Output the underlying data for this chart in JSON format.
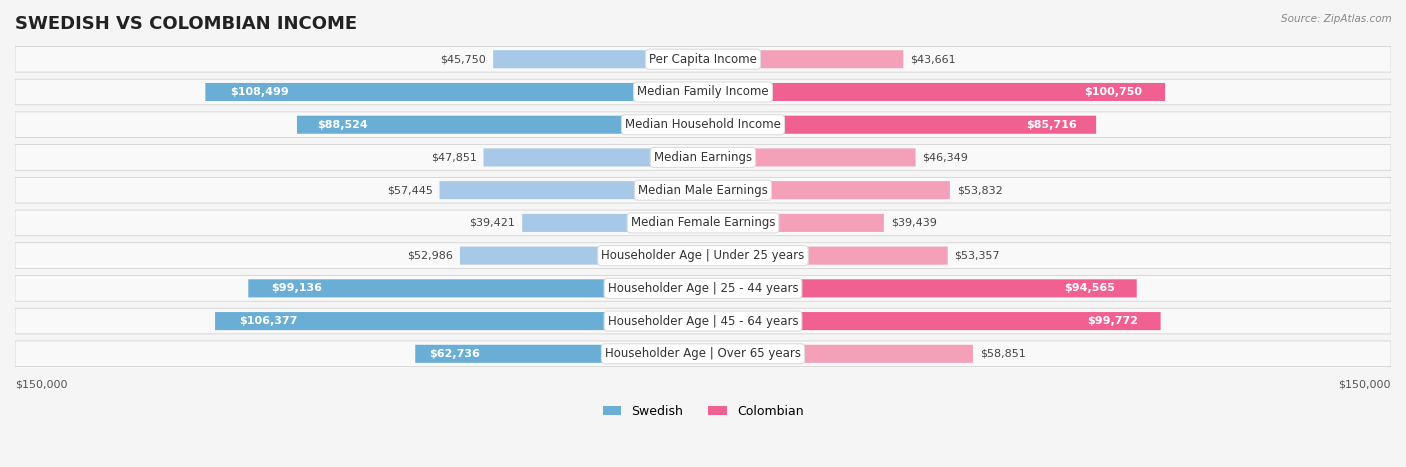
{
  "title": "SWEDISH VS COLOMBIAN INCOME",
  "source": "Source: ZipAtlas.com",
  "categories": [
    "Per Capita Income",
    "Median Family Income",
    "Median Household Income",
    "Median Earnings",
    "Median Male Earnings",
    "Median Female Earnings",
    "Householder Age | Under 25 years",
    "Householder Age | 25 - 44 years",
    "Householder Age | 45 - 64 years",
    "Householder Age | Over 65 years"
  ],
  "swedish_values": [
    45750,
    108499,
    88524,
    47851,
    57445,
    39421,
    52986,
    99136,
    106377,
    62736
  ],
  "colombian_values": [
    43661,
    100750,
    85716,
    46349,
    53832,
    39439,
    53357,
    94565,
    99772,
    58851
  ],
  "swedish_color_low": "#a8c8e8",
  "swedish_color_high": "#6aaed6",
  "colombian_color_low": "#f4a0b8",
  "colombian_color_high": "#f06090",
  "max_value": 150000,
  "background_color": "#f5f5f5",
  "row_bg_color": "#ffffff",
  "label_bg_color": "#ffffff",
  "title_fontsize": 13,
  "label_fontsize": 8.5,
  "value_fontsize": 8,
  "threshold_white_text": 60000
}
